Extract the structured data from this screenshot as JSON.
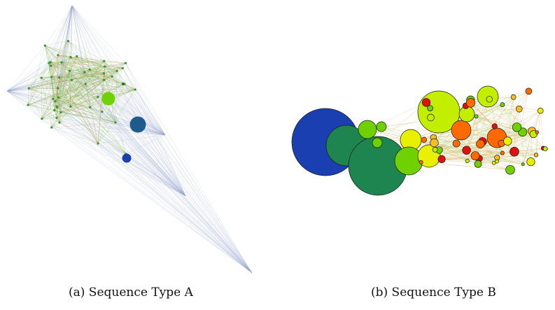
{
  "figure": {
    "captions": {
      "a": "(a) Sequence Type A",
      "b": "(b) Sequence Type B"
    },
    "colors": {
      "edge_a": "#8ea0c8",
      "edge_a_core": "#7cb342",
      "edge_b_green": "#b9d98a",
      "edge_b_orange": "#e8a45a",
      "node_outline": "#1a1a1a",
      "blue": "#1a3fb0",
      "teal_blue": "#1f5a8c",
      "dark_green": "#1e8450",
      "light_green": "#6fd100",
      "yellow_green": "#c4ee00",
      "yellow": "#e8f000",
      "orange": "#ff6a00",
      "red": "#e01010",
      "gold": "#f2c020"
    }
  }
}
